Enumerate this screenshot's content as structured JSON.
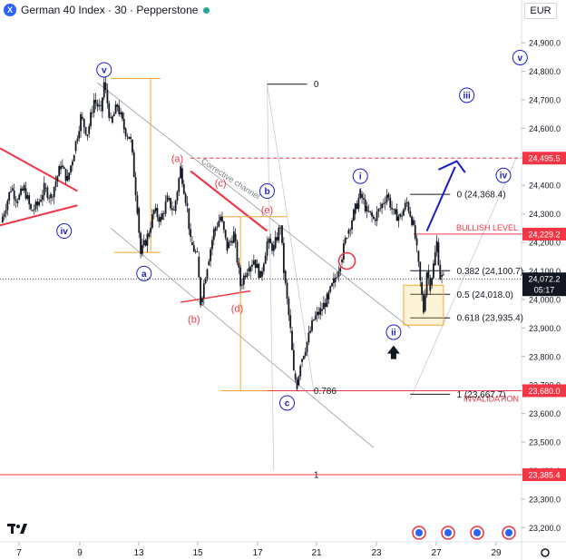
{
  "header": {
    "title": "German 40 Index · 30 · Pepperstone",
    "logo_icon": "tradingview-x-icon",
    "status_color": "#26a69a"
  },
  "currency": "EUR",
  "chart_data": {
    "type": "candlestick",
    "title": "German 40 Index · 30 · Pepperstone",
    "x_ticks": [
      "7",
      "9",
      "13",
      "15",
      "17",
      "21",
      "23",
      "27",
      "29"
    ],
    "y_ticks": [
      "24,900.0",
      "24,800.0",
      "24,700.0",
      "24,600.0",
      "24,500.0",
      "24,400.0",
      "24,300.0",
      "24,200.0",
      "24,100.0",
      "24,000.0",
      "23,900.0",
      "23,800.0",
      "23,700.0",
      "23,600.0",
      "23,500.0",
      "23,400.0",
      "23,300.0",
      "23,200.0"
    ],
    "ylim": [
      23150,
      24980
    ],
    "price_path": [
      [
        0,
        24270
      ],
      [
        3,
        24390
      ],
      [
        5,
        24350
      ],
      [
        7,
        24390
      ],
      [
        9,
        24310
      ],
      [
        11,
        24330
      ],
      [
        13,
        24390
      ],
      [
        15,
        24360
      ],
      [
        18,
        24470
      ],
      [
        20,
        24420
      ],
      [
        22,
        24520
      ],
      [
        24,
        24640
      ],
      [
        26,
        24580
      ],
      [
        28,
        24700
      ],
      [
        30,
        24660
      ],
      [
        31,
        24760
      ],
      [
        33,
        24620
      ],
      [
        35,
        24680
      ],
      [
        37,
        24600
      ],
      [
        39,
        24560
      ],
      [
        41,
        24320
      ],
      [
        42,
        24160
      ],
      [
        44,
        24220
      ],
      [
        46,
        24310
      ],
      [
        48,
        24280
      ],
      [
        50,
        24350
      ],
      [
        52,
        24310
      ],
      [
        54,
        24460
      ],
      [
        56,
        24320
      ],
      [
        57,
        24200
      ],
      [
        59,
        24150
      ],
      [
        60,
        23990
      ],
      [
        62,
        24120
      ],
      [
        64,
        24240
      ],
      [
        66,
        24290
      ],
      [
        68,
        24180
      ],
      [
        70,
        24230
      ],
      [
        72,
        24050
      ],
      [
        74,
        24110
      ],
      [
        76,
        24140
      ],
      [
        78,
        24080
      ],
      [
        80,
        24200
      ],
      [
        82,
        24180
      ],
      [
        84,
        24260
      ],
      [
        85,
        24100
      ],
      [
        87,
        23890
      ],
      [
        88,
        23740
      ],
      [
        89,
        23700
      ],
      [
        90,
        23780
      ],
      [
        92,
        23850
      ],
      [
        94,
        23930
      ],
      [
        96,
        23960
      ],
      [
        98,
        24000
      ],
      [
        100,
        24060
      ],
      [
        102,
        24130
      ],
      [
        104,
        24230
      ],
      [
        106,
        24300
      ],
      [
        108,
        24370
      ],
      [
        110,
        24310
      ],
      [
        112,
        24280
      ],
      [
        114,
        24320
      ],
      [
        116,
        24370
      ],
      [
        118,
        24300
      ],
      [
        120,
        24290
      ],
      [
        122,
        24340
      ],
      [
        124,
        24260
      ],
      [
        125,
        24170
      ],
      [
        126,
        24060
      ],
      [
        127,
        23960
      ],
      [
        128,
        24100
      ],
      [
        129,
        24050
      ],
      [
        130,
        24120
      ],
      [
        131,
        24200
      ],
      [
        132,
        24080
      ],
      [
        133,
        24072
      ]
    ],
    "last_price": "24,072.2",
    "countdown": "05:17",
    "price_labels": [
      {
        "value": 24495.5,
        "text": "24,495.5",
        "color": "#f23645"
      },
      {
        "value": 24229.2,
        "text": "24,229.2",
        "color": "#f23645"
      },
      {
        "value": 23680.0,
        "text": "23,680.0",
        "color": "#f23645"
      },
      {
        "value": 23385.4,
        "text": "23,385.4",
        "color": "#f23645"
      }
    ],
    "fib_levels": [
      {
        "ratio": "0",
        "label": "0 (24,368.4)",
        "value": 24368.4
      },
      {
        "ratio": "0.382",
        "label": "0.382 (24,100.7)",
        "value": 24100.7
      },
      {
        "ratio": "0.5",
        "label": "0.5 (24,018.0)",
        "value": 24018.0
      },
      {
        "ratio": "0.618",
        "label": "0.618 (23,935.4)",
        "value": 23935.4
      },
      {
        "ratio": "1",
        "label": "1 (23,667.7)",
        "value": 23667.7
      }
    ],
    "fib_big": {
      "top_label": "0",
      "mid_label": "0.786",
      "bottom_label": "1",
      "top": 24775,
      "bottom": 23385.4
    },
    "text_annotations": {
      "bullish": "BULLISH LEVEL",
      "invalidation": "INVALIDATION",
      "channel": "Corrective channel"
    },
    "wave_labels": [
      {
        "text": "v",
        "style": "blue",
        "t": 31,
        "v": 24805
      },
      {
        "text": "iv",
        "style": "blue",
        "t": 19,
        "v": 24240
      },
      {
        "text": "a",
        "style": "blue",
        "t": 43,
        "v": 24091
      },
      {
        "text": "(a)",
        "style": "red",
        "t": 53,
        "v": 24495
      },
      {
        "text": "(b)",
        "style": "red",
        "t": 58,
        "v": 23931
      },
      {
        "text": "(c)",
        "style": "red",
        "t": 66,
        "v": 24409
      },
      {
        "text": "(d)",
        "style": "red",
        "t": 71,
        "v": 23970
      },
      {
        "text": "(e)",
        "style": "red",
        "t": 80,
        "v": 24315
      },
      {
        "text": "b",
        "style": "blue",
        "t": 80,
        "v": 24380
      },
      {
        "text": "c",
        "style": "blue",
        "t": 86,
        "v": 23637
      },
      {
        "text": "i",
        "style": "blue",
        "t": 108,
        "v": 24432
      },
      {
        "text": "ii",
        "style": "blue",
        "t": 118,
        "v": 23885
      },
      {
        "text": "iii",
        "style": "blue",
        "t": 140,
        "v": 24716
      },
      {
        "text": "iv",
        "style": "blue",
        "t": 151,
        "v": 24435
      },
      {
        "text": "v",
        "style": "blue",
        "t": 156,
        "v": 24848
      }
    ]
  },
  "footer": {
    "logo": "TV",
    "settings_icon": "gear-icon",
    "event_icon": "economic-event-icon"
  }
}
